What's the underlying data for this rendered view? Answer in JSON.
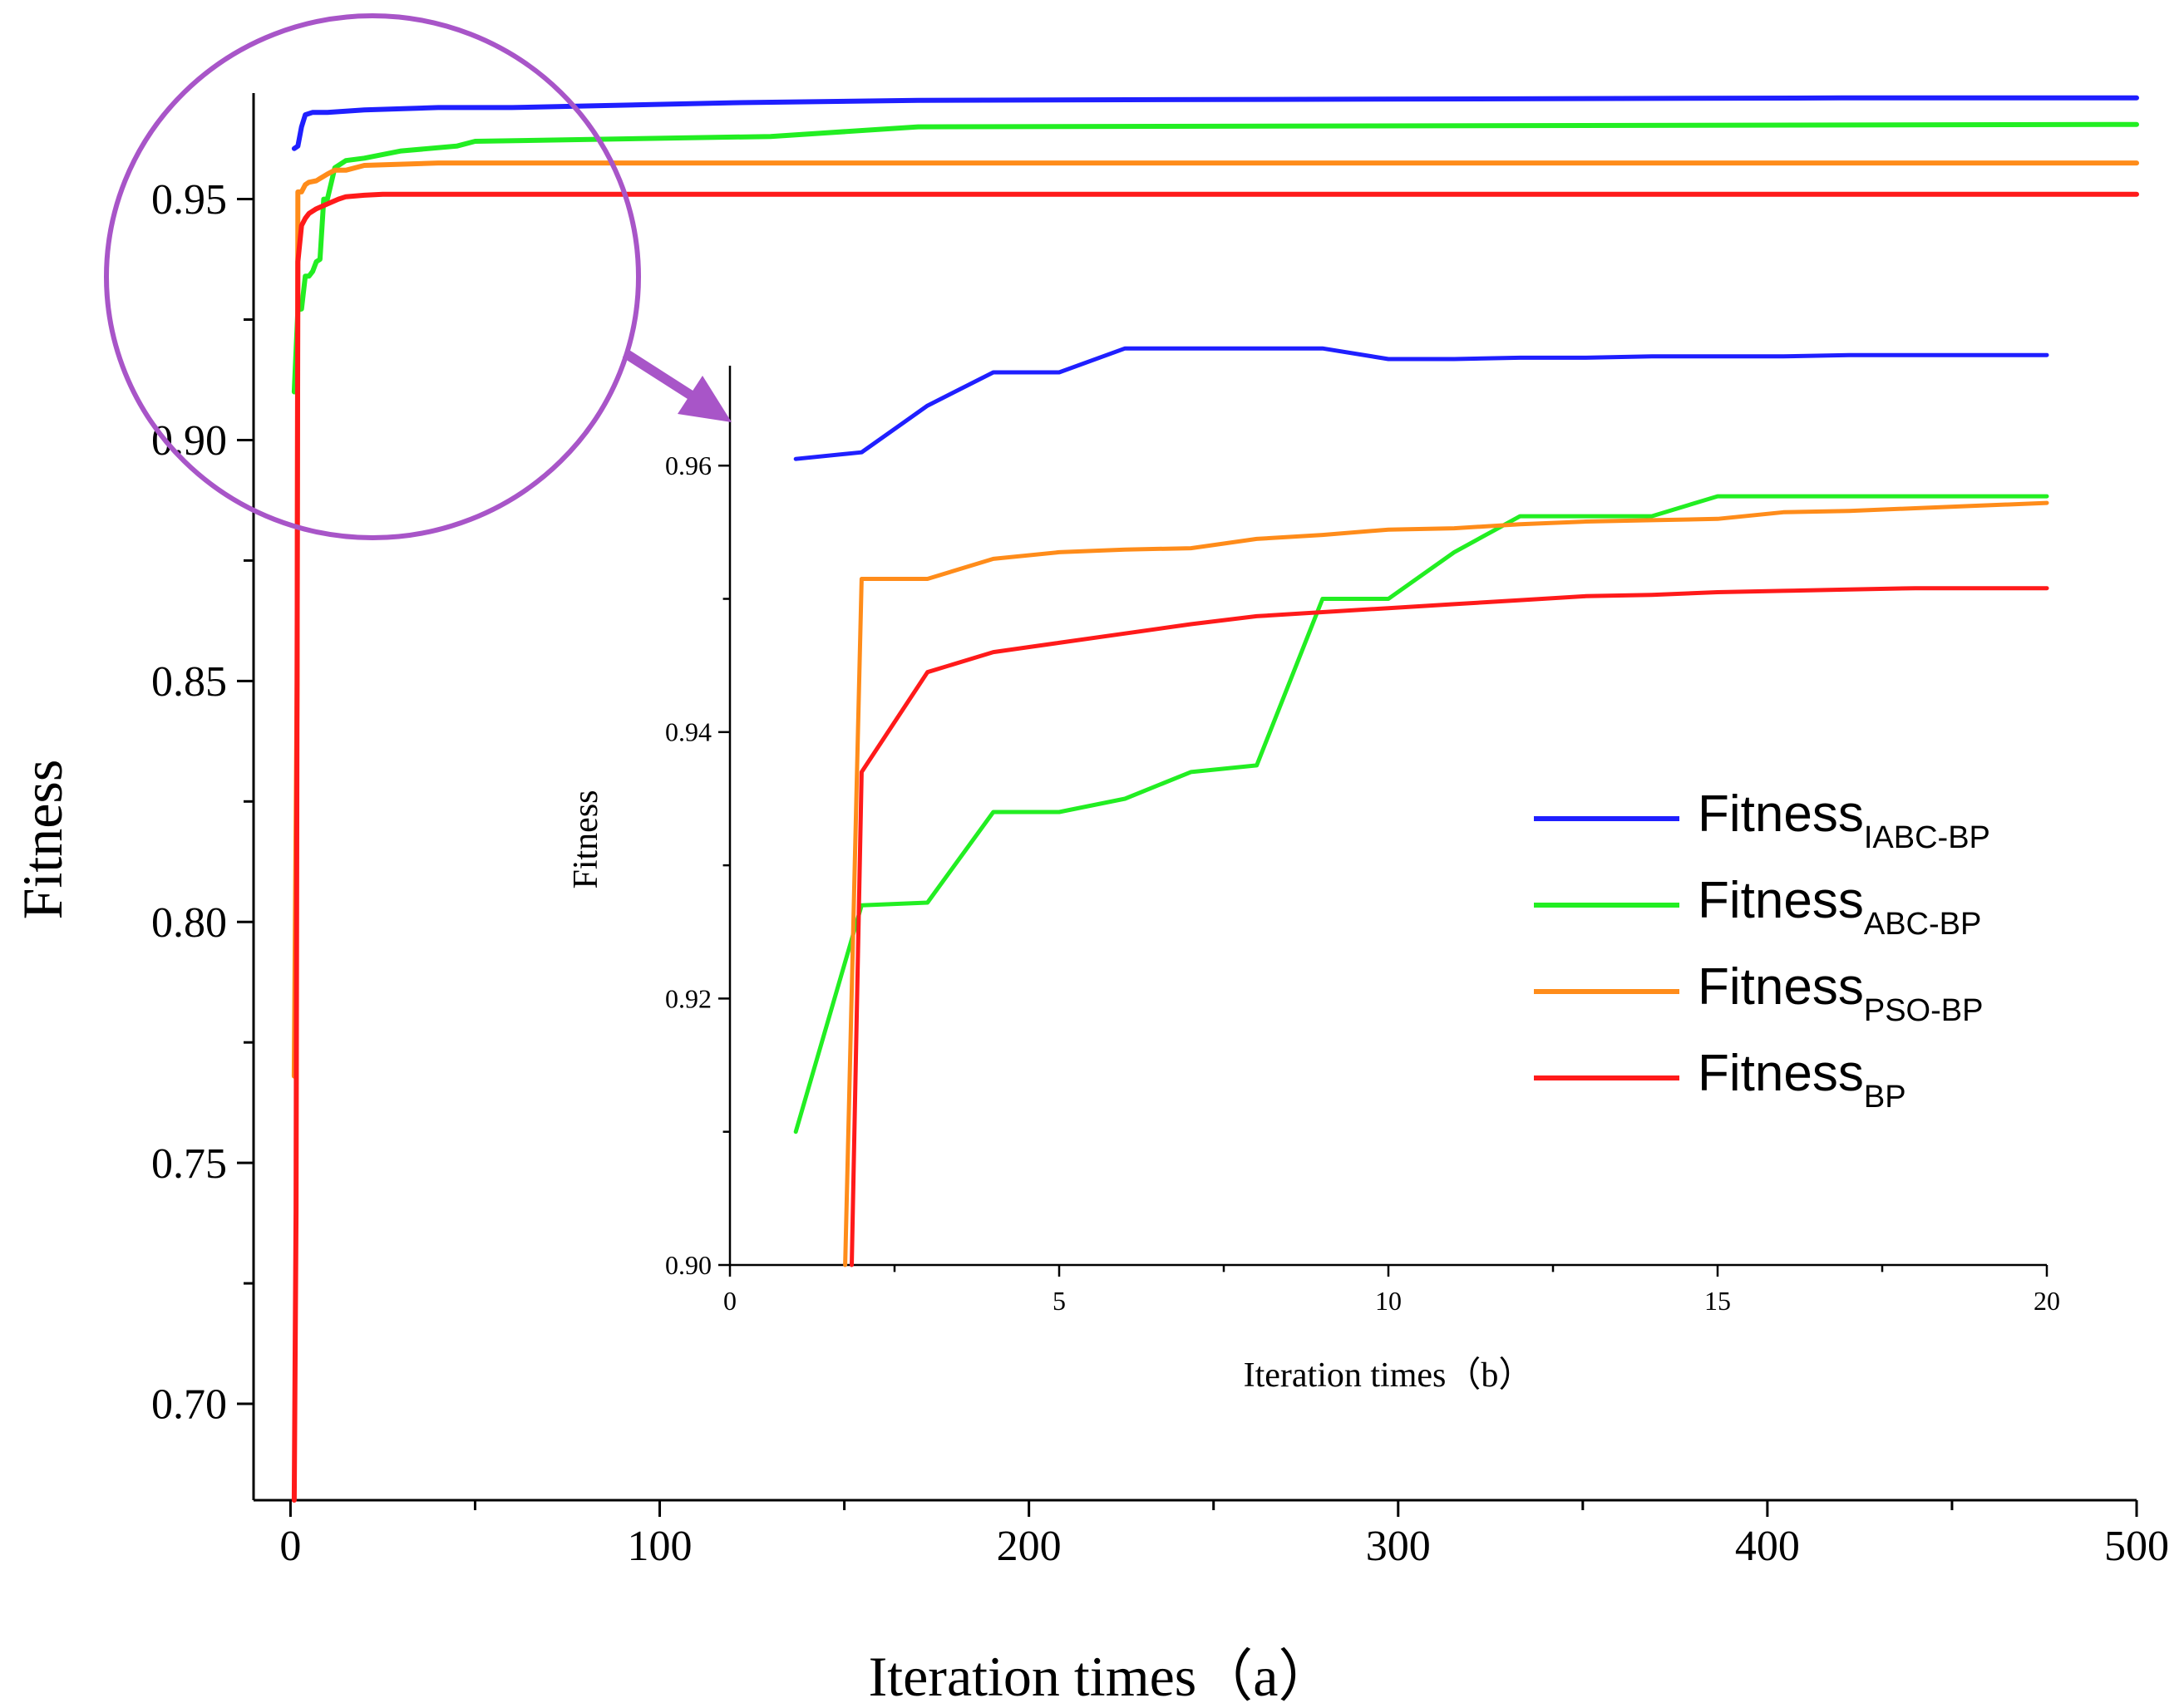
{
  "chart_data": [
    {
      "type": "line",
      "title": "",
      "xlabel": "Iteration times（a）",
      "ylabel": "Fitness",
      "xlim": [
        -10,
        500
      ],
      "ylim": [
        0.68,
        0.972
      ],
      "xticks": [
        0,
        100,
        200,
        300,
        400,
        500
      ],
      "xtick_labels": [
        "0",
        "100",
        "200",
        "300",
        "400",
        "500"
      ],
      "yticks": [
        0.7,
        0.75,
        0.8,
        0.85,
        0.9,
        0.95
      ],
      "ytick_labels": [
        "0.70",
        "0.75",
        "0.80",
        "0.85",
        "0.90",
        "0.95"
      ],
      "grid": false,
      "colors": {
        "IABC-BP": "#1f1fff",
        "ABC-BP": "#22ee22",
        "PSO-BP": "#ff8c1a",
        "BP": "#ff1a1a",
        "highlight": "#a855c8"
      },
      "series": [
        {
          "name": "IABC-BP",
          "x": [
            1,
            2,
            3,
            4,
            6,
            10,
            20,
            40,
            60,
            120,
            170,
            420,
            500
          ],
          "y": [
            0.9605,
            0.961,
            0.965,
            0.9675,
            0.968,
            0.968,
            0.9685,
            0.969,
            0.969,
            0.97,
            0.9705,
            0.971,
            0.971
          ]
        },
        {
          "name": "ABC-BP",
          "x": [
            1,
            2,
            3,
            4,
            5,
            6,
            7,
            8,
            9,
            10,
            12,
            15,
            20,
            30,
            45,
            50,
            130,
            170,
            500
          ],
          "y": [
            0.91,
            0.927,
            0.9272,
            0.934,
            0.934,
            0.935,
            0.937,
            0.9375,
            0.95,
            0.95,
            0.9565,
            0.958,
            0.9585,
            0.96,
            0.961,
            0.962,
            0.963,
            0.965,
            0.9655
          ]
        },
        {
          "name": "PSO-BP",
          "x": [
            1,
            1.8,
            2,
            3,
            4,
            5,
            7,
            10,
            12,
            15,
            20,
            40,
            500
          ],
          "y": [
            0.768,
            0.85,
            0.9515,
            0.9515,
            0.953,
            0.9535,
            0.9538,
            0.9552,
            0.956,
            0.956,
            0.957,
            0.9575,
            0.9575
          ]
        },
        {
          "name": "BP",
          "x": [
            1,
            1.5,
            2,
            3,
            4,
            5,
            7,
            10,
            13,
            15,
            20,
            25,
            50,
            500
          ],
          "y": [
            0.68,
            0.74,
            0.937,
            0.9445,
            0.946,
            0.947,
            0.948,
            0.949,
            0.95,
            0.9505,
            0.9508,
            0.951,
            0.951,
            0.951
          ]
        }
      ]
    },
    {
      "type": "line",
      "title": "",
      "xlabel": "Iteration times（b）",
      "ylabel": "Fitness",
      "xlim": [
        0,
        20
      ],
      "ylim": [
        0.9,
        0.9675
      ],
      "xticks": [
        0,
        5,
        10,
        15,
        20
      ],
      "xtick_labels": [
        "0",
        "5",
        "10",
        "15",
        "20"
      ],
      "yticks": [
        0.9,
        0.92,
        0.94,
        0.96
      ],
      "ytick_labels": [
        "0.90",
        "0.92",
        "0.94",
        "0.96"
      ],
      "legend_position": "right",
      "legend": [
        {
          "base": "Fitness",
          "sub": "IABC-BP"
        },
        {
          "base": "Fitness",
          "sub": "ABC-BP"
        },
        {
          "base": "Fitness",
          "sub": "PSO-BP"
        },
        {
          "base": "Fitness",
          "sub": "BP"
        }
      ],
      "series": [
        {
          "name": "IABC-BP",
          "x": [
            1,
            2,
            3,
            4,
            5,
            6,
            7,
            8,
            9,
            10,
            11,
            12,
            13,
            14,
            15,
            16,
            17,
            18,
            19,
            20
          ],
          "y": [
            0.9605,
            0.961,
            0.9645,
            0.967,
            0.967,
            0.9688,
            0.9688,
            0.9688,
            0.9688,
            0.968,
            0.968,
            0.9681,
            0.9681,
            0.9682,
            0.9682,
            0.9682,
            0.9683,
            0.9683,
            0.9683,
            0.9683
          ]
        },
        {
          "name": "ABC-BP",
          "x": [
            1,
            2,
            3,
            4,
            5,
            6,
            7,
            8,
            9,
            10,
            11,
            12,
            13,
            14,
            15,
            16,
            17,
            18,
            19,
            20
          ],
          "y": [
            0.91,
            0.927,
            0.9272,
            0.934,
            0.934,
            0.935,
            0.937,
            0.9375,
            0.95,
            0.95,
            0.9535,
            0.9562,
            0.9562,
            0.9562,
            0.9577,
            0.9577,
            0.9577,
            0.9577,
            0.9577,
            0.9577
          ]
        },
        {
          "name": "PSO-BP",
          "x": [
            1.75,
            2,
            3,
            4,
            5,
            6,
            7,
            8,
            9,
            10,
            11,
            12,
            13,
            14,
            15,
            16,
            17,
            18,
            19,
            20
          ],
          "y": [
            0.9,
            0.9515,
            0.9515,
            0.953,
            0.9535,
            0.9537,
            0.9538,
            0.9545,
            0.9548,
            0.9552,
            0.9553,
            0.9556,
            0.9558,
            0.9559,
            0.956,
            0.9565,
            0.9566,
            0.9568,
            0.957,
            0.9572
          ]
        },
        {
          "name": "BP",
          "x": [
            1.85,
            2,
            3,
            4,
            5,
            6,
            7,
            8,
            9,
            10,
            11,
            12,
            13,
            14,
            15,
            16,
            17,
            18,
            19,
            20
          ],
          "y": [
            0.9,
            0.937,
            0.9445,
            0.946,
            0.9467,
            0.9474,
            0.9481,
            0.9487,
            0.949,
            0.9493,
            0.9496,
            0.9499,
            0.9502,
            0.9503,
            0.9505,
            0.9506,
            0.9507,
            0.9508,
            0.9508,
            0.9508
          ]
        }
      ]
    }
  ]
}
